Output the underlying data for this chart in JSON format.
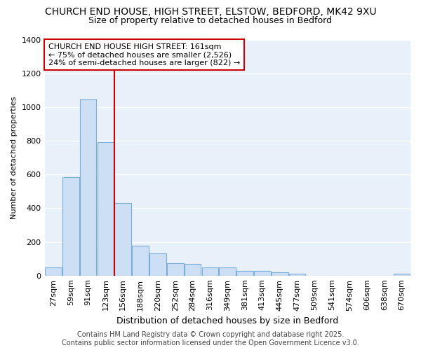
{
  "title_line1": "CHURCH END HOUSE, HIGH STREET, ELSTOW, BEDFORD, MK42 9XU",
  "title_line2": "Size of property relative to detached houses in Bedford",
  "xlabel": "Distribution of detached houses by size in Bedford",
  "ylabel": "Number of detached properties",
  "categories": [
    "27sqm",
    "59sqm",
    "91sqm",
    "123sqm",
    "156sqm",
    "188sqm",
    "220sqm",
    "252sqm",
    "284sqm",
    "316sqm",
    "349sqm",
    "381sqm",
    "413sqm",
    "445sqm",
    "477sqm",
    "509sqm",
    "541sqm",
    "574sqm",
    "606sqm",
    "638sqm",
    "670sqm"
  ],
  "values": [
    50,
    583,
    1047,
    793,
    430,
    178,
    130,
    72,
    68,
    47,
    50,
    27,
    28,
    18,
    10,
    0,
    0,
    0,
    0,
    0,
    12
  ],
  "bar_color": "#ccdff5",
  "bar_edge_color": "#7aaed6",
  "vline_x": 3.5,
  "vline_color": "#cc0000",
  "ylim": [
    0,
    1400
  ],
  "yticks": [
    0,
    200,
    400,
    600,
    800,
    1000,
    1200,
    1400
  ],
  "annotation_text": "CHURCH END HOUSE HIGH STREET: 161sqm\n← 75% of detached houses are smaller (2,526)\n24% of semi-detached houses are larger (822) →",
  "annotation_box_facecolor": "#ffffff",
  "annotation_box_edgecolor": "#cc0000",
  "footer_line1": "Contains HM Land Registry data © Crown copyright and database right 2025.",
  "footer_line2": "Contains public sector information licensed under the Open Government Licence v3.0.",
  "figure_facecolor": "#ffffff",
  "axes_facecolor": "#e8f0fa",
  "grid_color": "#ffffff",
  "title_fontsize": 10,
  "subtitle_fontsize": 9,
  "xlabel_fontsize": 9,
  "ylabel_fontsize": 8,
  "tick_fontsize": 8,
  "annot_fontsize": 8,
  "footer_fontsize": 7
}
